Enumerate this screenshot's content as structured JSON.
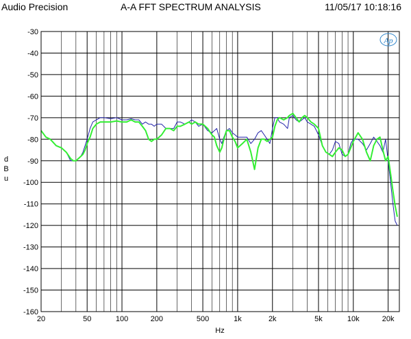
{
  "header": {
    "brand": "Audio Precision",
    "title": "A-A FFT SPECTRUM ANALYSIS",
    "timestamp": "11/05/17 10:18:16"
  },
  "logo_text": "Ap",
  "colors": {
    "series_1": "#2222aa",
    "series_2": "#33ee33",
    "grid": "#000000",
    "logo": "#3388cc"
  },
  "chart_data": {
    "type": "line",
    "title": "A-A FFT SPECTRUM ANALYSIS",
    "xlabel": "Hz",
    "ylabel_chars": [
      "d",
      "B",
      "u"
    ],
    "xscale": "log",
    "xlim": [
      20,
      25000
    ],
    "ylim": [
      -160,
      -30
    ],
    "grid": true,
    "x_major_ticks": [
      {
        "v": 20,
        "label": "20"
      },
      {
        "v": 50,
        "label": "50"
      },
      {
        "v": 100,
        "label": "100"
      },
      {
        "v": 200,
        "label": "200"
      },
      {
        "v": 500,
        "label": "500"
      },
      {
        "v": 1000,
        "label": "1k"
      },
      {
        "v": 2000,
        "label": "2k"
      },
      {
        "v": 5000,
        "label": "5k"
      },
      {
        "v": 10000,
        "label": "10k"
      },
      {
        "v": 20000,
        "label": "20k"
      }
    ],
    "x_minor_ticks": [
      30,
      40,
      60,
      70,
      80,
      90,
      300,
      400,
      600,
      700,
      800,
      900,
      3000,
      4000,
      6000,
      7000,
      8000,
      9000
    ],
    "y_ticks": [
      -30,
      -40,
      -50,
      -60,
      -70,
      -80,
      -90,
      -100,
      -110,
      -120,
      -130,
      -140,
      -150,
      -160
    ],
    "series": [
      {
        "color": "#2222aa",
        "width": 1,
        "x": [
          20,
          22,
          24,
          27,
          30,
          33,
          36,
          38,
          40,
          42,
          44,
          46,
          48,
          50,
          53,
          56,
          60,
          65,
          70,
          80,
          90,
          100,
          110,
          120,
          130,
          140,
          150,
          160,
          170,
          180,
          190,
          200,
          220,
          240,
          260,
          280,
          300,
          320,
          350,
          380,
          400,
          430,
          460,
          500,
          550,
          600,
          630,
          660,
          700,
          730,
          760,
          800,
          850,
          900,
          950,
          1000,
          1100,
          1200,
          1300,
          1400,
          1500,
          1600,
          1700,
          1800,
          1900,
          2000,
          2100,
          2200,
          2300,
          2500,
          2700,
          2800,
          3000,
          3200,
          3400,
          3600,
          3800,
          4000,
          4300,
          4600,
          5000,
          5400,
          5800,
          6200,
          6600,
          7000,
          7500,
          8000,
          8500,
          9000,
          9500,
          10000,
          11000,
          12000,
          13000,
          14000,
          15000,
          16000,
          17000,
          18000,
          19000,
          20000,
          21000,
          22000,
          23000,
          24000
        ],
        "y": [
          -76,
          -79,
          -80,
          -83,
          -84,
          -86,
          -90,
          -90,
          -90,
          -89,
          -88,
          -86,
          -83,
          -80,
          -75,
          -72,
          -71,
          -70,
          -70,
          -70.5,
          -70,
          -71,
          -71,
          -70.5,
          -71,
          -71,
          -73,
          -72,
          -73,
          -73,
          -74,
          -73,
          -73,
          -75,
          -75,
          -75,
          -72,
          -72,
          -73,
          -72,
          -71,
          -72,
          -74,
          -73,
          -76,
          -77,
          -76,
          -75,
          -80,
          -82,
          -79,
          -76,
          -75,
          -77,
          -78,
          -79,
          -79,
          -79,
          -82,
          -80,
          -77,
          -76,
          -78,
          -80,
          -82,
          -75,
          -70,
          -70,
          -72,
          -73,
          -75,
          -70,
          -69,
          -71,
          -72,
          -71,
          -70,
          -72,
          -73,
          -74,
          -78,
          -83,
          -86,
          -87,
          -85,
          -81,
          -82,
          -87,
          -88,
          -87,
          -82,
          -80,
          -80,
          -82,
          -85,
          -82,
          -79,
          -81,
          -83,
          -86,
          -80,
          -90,
          -100,
          -110,
          -118,
          -120
        ]
      },
      {
        "color": "#33ee33",
        "width": 2,
        "x": [
          20,
          22,
          24,
          27,
          30,
          33,
          36,
          38,
          40,
          42,
          44,
          46,
          48,
          50,
          53,
          56,
          60,
          65,
          70,
          80,
          90,
          100,
          110,
          120,
          130,
          140,
          150,
          160,
          170,
          180,
          190,
          200,
          220,
          240,
          260,
          280,
          300,
          320,
          350,
          380,
          400,
          430,
          460,
          500,
          550,
          600,
          630,
          660,
          700,
          730,
          760,
          800,
          850,
          900,
          950,
          1000,
          1100,
          1200,
          1300,
          1350,
          1400,
          1500,
          1600,
          1700,
          1800,
          1900,
          2000,
          2100,
          2200,
          2300,
          2500,
          2700,
          2800,
          3000,
          3200,
          3400,
          3600,
          3800,
          4000,
          4300,
          4600,
          5000,
          5400,
          5800,
          6200,
          6600,
          7000,
          7500,
          8000,
          8500,
          9000,
          9500,
          10000,
          11000,
          12000,
          13000,
          14000,
          15000,
          16000,
          17000,
          18000,
          19000,
          20000,
          21000,
          22000,
          23000,
          24000
        ],
        "y": [
          -76,
          -79,
          -80,
          -83,
          -84,
          -86,
          -89,
          -90,
          -90,
          -89,
          -88,
          -87,
          -85,
          -82,
          -79,
          -75,
          -73,
          -72,
          -72,
          -72,
          -71.5,
          -72,
          -72,
          -71,
          -72,
          -72,
          -74,
          -76,
          -80,
          -81,
          -80,
          -80,
          -78,
          -75,
          -75,
          -76,
          -74,
          -74,
          -73,
          -72,
          -73,
          -72,
          -73,
          -73,
          -75,
          -78,
          -79,
          -83,
          -86,
          -84,
          -80,
          -76,
          -76,
          -79,
          -81,
          -84,
          -82,
          -80,
          -86,
          -90,
          -94,
          -84,
          -80,
          -80,
          -81,
          -80,
          -79,
          -74,
          -71,
          -70,
          -71,
          -70,
          -69,
          -68,
          -70,
          -72,
          -70,
          -69,
          -70,
          -72,
          -73,
          -75,
          -83,
          -86,
          -87,
          -88,
          -86,
          -84,
          -85,
          -88,
          -87,
          -84,
          -81,
          -77,
          -80,
          -86,
          -90,
          -83,
          -80,
          -79,
          -85,
          -90,
          -88,
          -96,
          -104,
          -111,
          -116
        ]
      }
    ]
  }
}
